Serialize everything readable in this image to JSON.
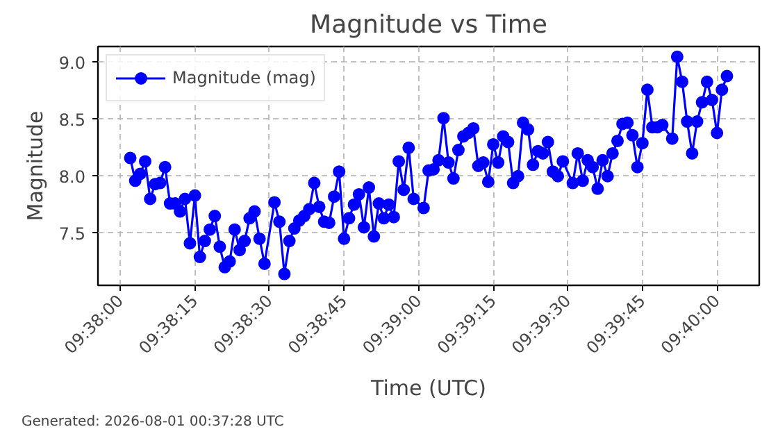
{
  "chart_data": {
    "type": "line",
    "title": "Magnitude vs Time",
    "xlabel": "Time (UTC)",
    "ylabel": "Magnitude",
    "annotations": [
      "Generated: 2026-08-01 00:37:28 UTC"
    ],
    "x": [
      9.633889,
      9.634167,
      9.634444,
      9.634722,
      9.635,
      9.635278,
      9.635556,
      9.635833,
      9.636111,
      9.636389,
      9.636667,
      9.636944,
      9.637222,
      9.6375,
      9.637778,
      9.638056,
      9.638333,
      9.638611,
      9.638889,
      9.639167,
      9.639444,
      9.639722,
      9.64,
      9.640278,
      9.640556,
      9.640833,
      9.641111,
      9.641389,
      9.641944,
      9.642222,
      9.6425,
      9.642778,
      9.643056,
      9.643333,
      9.643611,
      9.643889,
      9.644167,
      9.644444,
      9.644722,
      9.645,
      9.645278,
      9.645556,
      9.645833,
      9.646111,
      9.646389,
      9.646667,
      9.646944,
      9.647222,
      9.6475,
      9.647778,
      9.648056,
      9.648333,
      9.648611,
      9.648889,
      9.649167,
      9.649444,
      9.649722,
      9.650278,
      9.650556,
      9.650833,
      9.651111,
      9.651389,
      9.651667,
      9.651944,
      9.652222,
      9.6525,
      9.652778,
      9.653056,
      9.653333,
      9.653611,
      9.653889,
      9.654167,
      9.654444,
      9.654722,
      9.655,
      9.655278,
      9.655556,
      9.655833,
      9.656111,
      9.656389,
      9.656667,
      9.656944,
      9.657222,
      9.6575,
      9.657778,
      9.658056,
      9.658611,
      9.658889,
      9.659167,
      9.659444,
      9.659722,
      9.66,
      9.660278,
      9.660556,
      9.660833,
      9.661111,
      9.661389,
      9.661667,
      9.661944,
      9.662222,
      9.6625,
      9.662778,
      9.663056,
      9.663333,
      9.663611,
      9.664167,
      9.664444,
      9.664722,
      9.665,
      9.665278,
      9.665556,
      9.665833,
      9.666111,
      9.666389,
      9.666667,
      9.666944,
      9.667222
    ],
    "series": [
      {
        "name": "Magnitude (mag)",
        "color": "#0000ff",
        "values": [
          8.16,
          7.96,
          8.02,
          8.13,
          7.8,
          7.93,
          7.94,
          8.08,
          7.76,
          7.76,
          7.69,
          7.8,
          7.41,
          7.83,
          7.29,
          7.43,
          7.53,
          7.65,
          7.38,
          7.2,
          7.25,
          7.53,
          7.35,
          7.43,
          7.63,
          7.69,
          7.45,
          7.23,
          7.77,
          7.6,
          7.14,
          7.43,
          7.54,
          7.61,
          7.65,
          7.71,
          7.94,
          7.73,
          7.6,
          7.59,
          7.82,
          8.04,
          7.45,
          7.63,
          7.75,
          7.84,
          7.55,
          7.9,
          7.47,
          7.76,
          7.63,
          7.75,
          7.64,
          8.13,
          7.88,
          8.25,
          7.8,
          7.72,
          8.05,
          8.06,
          8.14,
          8.51,
          8.12,
          7.98,
          8.23,
          8.35,
          8.38,
          8.42,
          8.09,
          8.12,
          7.95,
          8.28,
          8.12,
          8.35,
          8.3,
          7.94,
          8.0,
          8.47,
          8.41,
          8.1,
          8.22,
          8.2,
          8.3,
          8.04,
          8.0,
          8.13,
          7.94,
          8.2,
          7.96,
          8.14,
          8.08,
          7.89,
          8.14,
          8.0,
          8.2,
          8.31,
          8.46,
          8.47,
          8.36,
          8.08,
          8.29,
          8.76,
          8.43,
          8.43,
          8.45,
          8.33,
          9.05,
          8.83,
          8.48,
          8.2,
          8.48,
          8.65,
          8.83,
          8.67,
          8.38,
          8.76,
          8.88
        ]
      }
    ],
    "xlim": [
      9.632083,
      9.669028
    ],
    "xticks": [
      {
        "value": 9.633333,
        "label": "09:38:00"
      },
      {
        "value": 9.6375,
        "label": "09:38:15"
      },
      {
        "value": 9.641667,
        "label": "09:38:30"
      },
      {
        "value": 9.645833,
        "label": "09:38:45"
      },
      {
        "value": 9.65,
        "label": "09:39:00"
      },
      {
        "value": 9.654167,
        "label": "09:39:15"
      },
      {
        "value": 9.658333,
        "label": "09:39:30"
      },
      {
        "value": 9.6625,
        "label": "09:39:45"
      },
      {
        "value": 9.666667,
        "label": "09:40:00"
      }
    ],
    "ylim": [
      7.04,
      9.14
    ],
    "yticks": [
      {
        "value": 7.5,
        "label": "7.5"
      },
      {
        "value": 8.0,
        "label": "8.0"
      },
      {
        "value": 8.5,
        "label": "8.5"
      },
      {
        "value": 9.0,
        "label": "9.0"
      }
    ],
    "grid": true,
    "legend": "top left",
    "marker": "circle",
    "line_style": "solid"
  }
}
